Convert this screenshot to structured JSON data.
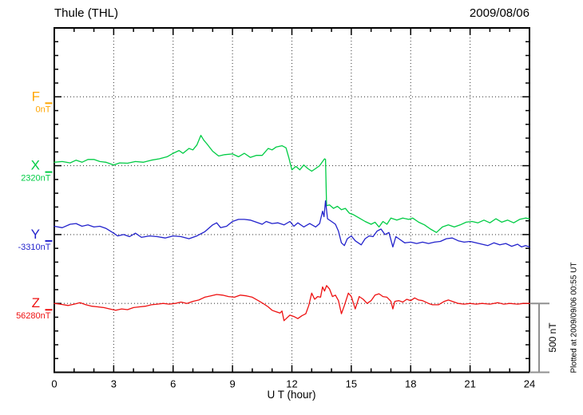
{
  "chart_data": {
    "type": "line",
    "station_title": "Thule (THL)",
    "date": "2009/08/06",
    "xlabel": "U T (hour)",
    "x_range": [
      0,
      24
    ],
    "x_major_ticks": [
      0,
      3,
      6,
      9,
      12,
      15,
      18,
      21,
      24
    ],
    "x_minor_step": 1,
    "grid_hours": [
      3,
      6,
      9,
      12,
      15,
      18,
      21
    ],
    "y_tick_nT": 100,
    "baseline_spacing_nT": 500,
    "grid_style": "dotted",
    "legend_position": "left-margin",
    "scale_bar": {
      "label": "500 nT",
      "nT": 500
    },
    "plotted_at_note": "Plotted at 2009/09/06 00:55 UT",
    "axis_color": "#000000",
    "grid_color": "#444444",
    "scale_bar_color": "#909090",
    "components": [
      {
        "name": "F",
        "baseline_label": "0nT",
        "color": "#FFA500",
        "points": []
      },
      {
        "name": "X",
        "baseline_label": "2320nT",
        "color": "#00CC44",
        "points": [
          [
            0,
            25
          ],
          [
            0.4,
            30
          ],
          [
            0.8,
            20
          ],
          [
            1.1,
            40
          ],
          [
            1.4,
            25
          ],
          [
            1.7,
            45
          ],
          [
            2.0,
            45
          ],
          [
            2.3,
            30
          ],
          [
            2.6,
            25
          ],
          [
            3.0,
            5
          ],
          [
            3.3,
            20
          ],
          [
            3.7,
            18
          ],
          [
            4.1,
            30
          ],
          [
            4.5,
            25
          ],
          [
            4.9,
            40
          ],
          [
            5.3,
            50
          ],
          [
            5.7,
            65
          ],
          [
            6.0,
            90
          ],
          [
            6.3,
            110
          ],
          [
            6.5,
            90
          ],
          [
            6.8,
            125
          ],
          [
            7.0,
            115
          ],
          [
            7.2,
            150
          ],
          [
            7.4,
            220
          ],
          [
            7.55,
            185
          ],
          [
            7.7,
            160
          ],
          [
            8.0,
            105
          ],
          [
            8.3,
            70
          ],
          [
            8.6,
            80
          ],
          [
            9.0,
            85
          ],
          [
            9.3,
            65
          ],
          [
            9.6,
            90
          ],
          [
            9.9,
            60
          ],
          [
            10.2,
            75
          ],
          [
            10.5,
            75
          ],
          [
            10.8,
            125
          ],
          [
            11.0,
            115
          ],
          [
            11.2,
            135
          ],
          [
            11.5,
            145
          ],
          [
            11.7,
            130
          ],
          [
            11.85,
            55
          ],
          [
            12.0,
            -30
          ],
          [
            12.2,
            -5
          ],
          [
            12.4,
            -30
          ],
          [
            12.6,
            5
          ],
          [
            12.8,
            -20
          ],
          [
            13.0,
            -40
          ],
          [
            13.2,
            -20
          ],
          [
            13.4,
            0
          ],
          [
            13.55,
            30
          ],
          [
            13.65,
            50
          ],
          [
            13.7,
            45
          ],
          [
            13.75,
            -290
          ],
          [
            13.9,
            -285
          ],
          [
            14.1,
            -310
          ],
          [
            14.3,
            -295
          ],
          [
            14.5,
            -320
          ],
          [
            14.7,
            -310
          ],
          [
            14.9,
            -345
          ],
          [
            15.1,
            -355
          ],
          [
            15.4,
            -380
          ],
          [
            15.7,
            -405
          ],
          [
            16.0,
            -425
          ],
          [
            16.2,
            -410
          ],
          [
            16.4,
            -445
          ],
          [
            16.6,
            -405
          ],
          [
            16.8,
            -425
          ],
          [
            17.0,
            -380
          ],
          [
            17.3,
            -395
          ],
          [
            17.6,
            -380
          ],
          [
            17.9,
            -390
          ],
          [
            18.1,
            -380
          ],
          [
            18.4,
            -410
          ],
          [
            18.7,
            -430
          ],
          [
            19.0,
            -460
          ],
          [
            19.3,
            -485
          ],
          [
            19.6,
            -445
          ],
          [
            19.9,
            -430
          ],
          [
            20.2,
            -445
          ],
          [
            20.5,
            -430
          ],
          [
            20.8,
            -410
          ],
          [
            21.1,
            -405
          ],
          [
            21.4,
            -415
          ],
          [
            21.7,
            -395
          ],
          [
            22.0,
            -415
          ],
          [
            22.3,
            -385
          ],
          [
            22.6,
            -410
          ],
          [
            22.9,
            -395
          ],
          [
            23.2,
            -415
          ],
          [
            23.5,
            -390
          ],
          [
            23.8,
            -380
          ],
          [
            24,
            -385
          ]
        ]
      },
      {
        "name": "Y",
        "baseline_label": "-3310nT",
        "color": "#2222CC",
        "points": [
          [
            0,
            60
          ],
          [
            0.4,
            50
          ],
          [
            0.8,
            75
          ],
          [
            1.1,
            80
          ],
          [
            1.4,
            60
          ],
          [
            1.7,
            70
          ],
          [
            2.0,
            55
          ],
          [
            2.3,
            60
          ],
          [
            2.6,
            45
          ],
          [
            3.0,
            10
          ],
          [
            3.2,
            -10
          ],
          [
            3.5,
            0
          ],
          [
            3.8,
            -15
          ],
          [
            4.1,
            10
          ],
          [
            4.4,
            -20
          ],
          [
            4.8,
            -10
          ],
          [
            5.2,
            -15
          ],
          [
            5.6,
            -25
          ],
          [
            6.0,
            -10
          ],
          [
            6.4,
            -15
          ],
          [
            6.8,
            -30
          ],
          [
            7.2,
            -10
          ],
          [
            7.6,
            20
          ],
          [
            8.0,
            70
          ],
          [
            8.2,
            85
          ],
          [
            8.4,
            50
          ],
          [
            8.7,
            60
          ],
          [
            9.0,
            95
          ],
          [
            9.3,
            110
          ],
          [
            9.6,
            110
          ],
          [
            9.9,
            105
          ],
          [
            10.2,
            90
          ],
          [
            10.5,
            75
          ],
          [
            10.7,
            95
          ],
          [
            11.0,
            80
          ],
          [
            11.3,
            85
          ],
          [
            11.6,
            70
          ],
          [
            11.9,
            95
          ],
          [
            12.1,
            60
          ],
          [
            12.3,
            85
          ],
          [
            12.6,
            55
          ],
          [
            12.9,
            80
          ],
          [
            13.2,
            55
          ],
          [
            13.4,
            80
          ],
          [
            13.55,
            170
          ],
          [
            13.62,
            130
          ],
          [
            13.7,
            245
          ],
          [
            13.8,
            115
          ],
          [
            14.0,
            95
          ],
          [
            14.2,
            75
          ],
          [
            14.35,
            25
          ],
          [
            14.5,
            -60
          ],
          [
            14.65,
            -80
          ],
          [
            14.8,
            -30
          ],
          [
            15.0,
            -10
          ],
          [
            15.2,
            -45
          ],
          [
            15.5,
            -75
          ],
          [
            15.7,
            -30
          ],
          [
            15.9,
            -10
          ],
          [
            16.1,
            -15
          ],
          [
            16.3,
            25
          ],
          [
            16.5,
            40
          ],
          [
            16.7,
            0
          ],
          [
            16.9,
            15
          ],
          [
            17.1,
            -90
          ],
          [
            17.25,
            -15
          ],
          [
            17.4,
            -30
          ],
          [
            17.7,
            -60
          ],
          [
            18.0,
            -55
          ],
          [
            18.3,
            -65
          ],
          [
            18.6,
            -55
          ],
          [
            18.9,
            -65
          ],
          [
            19.2,
            -55
          ],
          [
            19.5,
            -50
          ],
          [
            19.8,
            -30
          ],
          [
            20.1,
            -25
          ],
          [
            20.4,
            -45
          ],
          [
            20.7,
            -55
          ],
          [
            21.0,
            -50
          ],
          [
            21.3,
            -60
          ],
          [
            21.6,
            -70
          ],
          [
            21.9,
            -80
          ],
          [
            22.2,
            -60
          ],
          [
            22.5,
            -75
          ],
          [
            22.8,
            -65
          ],
          [
            23.1,
            -85
          ],
          [
            23.4,
            -70
          ],
          [
            23.6,
            -90
          ],
          [
            23.8,
            -80
          ],
          [
            24,
            -90
          ]
        ]
      },
      {
        "name": "Z",
        "baseline_label": "56280nT",
        "color": "#EE1111",
        "points": [
          [
            0,
            0
          ],
          [
            0.3,
            -5
          ],
          [
            0.7,
            -15
          ],
          [
            1.0,
            -5
          ],
          [
            1.3,
            5
          ],
          [
            1.6,
            -10
          ],
          [
            1.9,
            -20
          ],
          [
            2.2,
            -25
          ],
          [
            2.5,
            -30
          ],
          [
            2.8,
            -40
          ],
          [
            3.1,
            -50
          ],
          [
            3.4,
            -40
          ],
          [
            3.7,
            -45
          ],
          [
            4.0,
            -30
          ],
          [
            4.3,
            -25
          ],
          [
            4.6,
            -20
          ],
          [
            4.9,
            -10
          ],
          [
            5.2,
            -5
          ],
          [
            5.5,
            0
          ],
          [
            5.8,
            -5
          ],
          [
            6.1,
            0
          ],
          [
            6.4,
            10
          ],
          [
            6.7,
            0
          ],
          [
            7.0,
            15
          ],
          [
            7.3,
            25
          ],
          [
            7.6,
            45
          ],
          [
            7.9,
            55
          ],
          [
            8.2,
            65
          ],
          [
            8.5,
            60
          ],
          [
            8.8,
            50
          ],
          [
            9.1,
            45
          ],
          [
            9.4,
            60
          ],
          [
            9.7,
            55
          ],
          [
            10.0,
            45
          ],
          [
            10.3,
            20
          ],
          [
            10.6,
            -5
          ],
          [
            10.8,
            -25
          ],
          [
            11.0,
            -50
          ],
          [
            11.2,
            -60
          ],
          [
            11.4,
            -70
          ],
          [
            11.5,
            -55
          ],
          [
            11.6,
            -125
          ],
          [
            11.75,
            -105
          ],
          [
            11.9,
            -85
          ],
          [
            12.1,
            -95
          ],
          [
            12.3,
            -110
          ],
          [
            12.5,
            -90
          ],
          [
            12.7,
            -75
          ],
          [
            12.85,
            -15
          ],
          [
            13.0,
            75
          ],
          [
            13.15,
            30
          ],
          [
            13.3,
            50
          ],
          [
            13.45,
            45
          ],
          [
            13.55,
            120
          ],
          [
            13.65,
            90
          ],
          [
            13.75,
            130
          ],
          [
            13.9,
            105
          ],
          [
            14.05,
            50
          ],
          [
            14.2,
            60
          ],
          [
            14.35,
            20
          ],
          [
            14.5,
            -75
          ],
          [
            14.65,
            -15
          ],
          [
            14.85,
            75
          ],
          [
            15.0,
            50
          ],
          [
            15.2,
            -40
          ],
          [
            15.4,
            50
          ],
          [
            15.6,
            30
          ],
          [
            15.8,
            0
          ],
          [
            16.0,
            20
          ],
          [
            16.2,
            60
          ],
          [
            16.4,
            70
          ],
          [
            16.6,
            50
          ],
          [
            16.8,
            45
          ],
          [
            17.0,
            15
          ],
          [
            17.1,
            -40
          ],
          [
            17.2,
            15
          ],
          [
            17.4,
            20
          ],
          [
            17.6,
            10
          ],
          [
            17.8,
            30
          ],
          [
            18.0,
            20
          ],
          [
            18.2,
            40
          ],
          [
            18.4,
            25
          ],
          [
            18.6,
            20
          ],
          [
            18.9,
            0
          ],
          [
            19.1,
            -10
          ],
          [
            19.4,
            -10
          ],
          [
            19.7,
            15
          ],
          [
            19.9,
            25
          ],
          [
            20.1,
            15
          ],
          [
            20.4,
            0
          ],
          [
            20.7,
            -5
          ],
          [
            21.0,
            0
          ],
          [
            21.3,
            -5
          ],
          [
            21.6,
            0
          ],
          [
            22.0,
            -5
          ],
          [
            22.4,
            5
          ],
          [
            22.7,
            -5
          ],
          [
            23.0,
            0
          ],
          [
            23.4,
            -5
          ],
          [
            23.7,
            0
          ],
          [
            24,
            0
          ]
        ]
      }
    ]
  }
}
